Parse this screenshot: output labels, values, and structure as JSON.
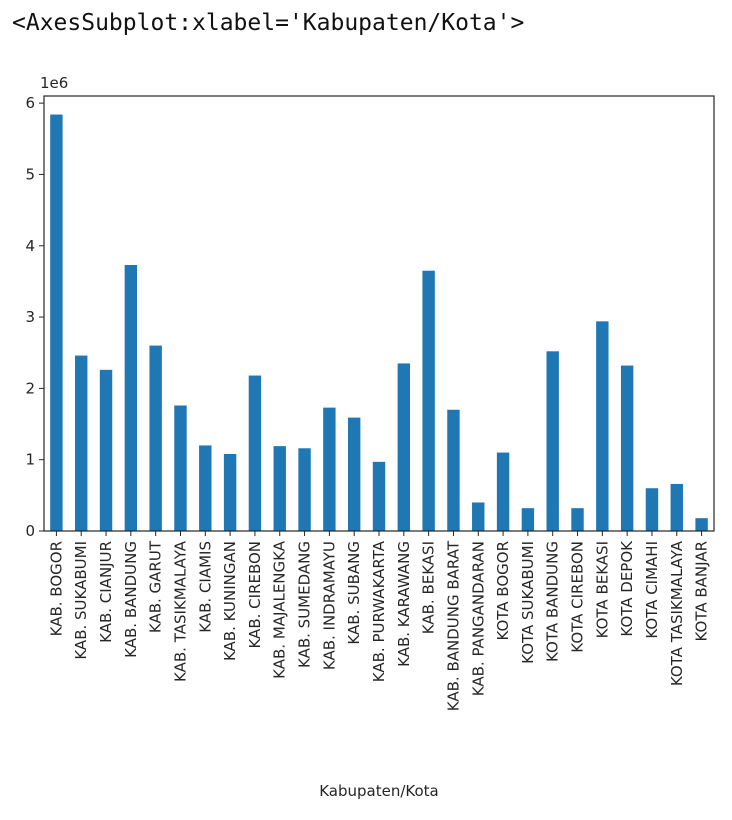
{
  "output_repr": "<AxesSubplot:xlabel='Kabupaten/Kota'>",
  "chart_data": {
    "type": "bar",
    "xlabel": "Kabupaten/Kota",
    "ylabel": "",
    "offset_text": "1e6",
    "ylim": [
      0,
      6.1
    ],
    "yticks": [
      "0",
      "1",
      "2",
      "3",
      "4",
      "5",
      "6"
    ],
    "bar_color": "#1f77b4",
    "grid": false,
    "categories": [
      "KAB. BOGOR",
      "KAB. SUKABUMI",
      "KAB. CIANJUR",
      "KAB. BANDUNG",
      "KAB. GARUT",
      "KAB. TASIKMALAYA",
      "KAB. CIAMIS",
      "KAB. KUNINGAN",
      "KAB. CIREBON",
      "KAB. MAJALENGKA",
      "KAB. SUMEDANG",
      "KAB. INDRAMAYU",
      "KAB. SUBANG",
      "KAB. PURWAKARTA",
      "KAB. KARAWANG",
      "KAB. BEKASI",
      "KAB. BANDUNG BARAT",
      "KAB. PANGANDARAN",
      "KOTA BOGOR",
      "KOTA SUKABUMI",
      "KOTA BANDUNG",
      "KOTA CIREBON",
      "KOTA BEKASI",
      "KOTA DEPOK",
      "KOTA CIMAHI",
      "KOTA TASIKMALAYA",
      "KOTA BANJAR"
    ],
    "values": [
      5.84,
      2.46,
      2.26,
      3.73,
      2.6,
      1.76,
      1.2,
      1.08,
      2.18,
      1.19,
      1.16,
      1.73,
      1.59,
      0.97,
      2.35,
      3.65,
      1.7,
      0.4,
      1.1,
      0.32,
      2.52,
      0.32,
      2.94,
      2.32,
      0.6,
      0.66,
      0.18
    ]
  }
}
